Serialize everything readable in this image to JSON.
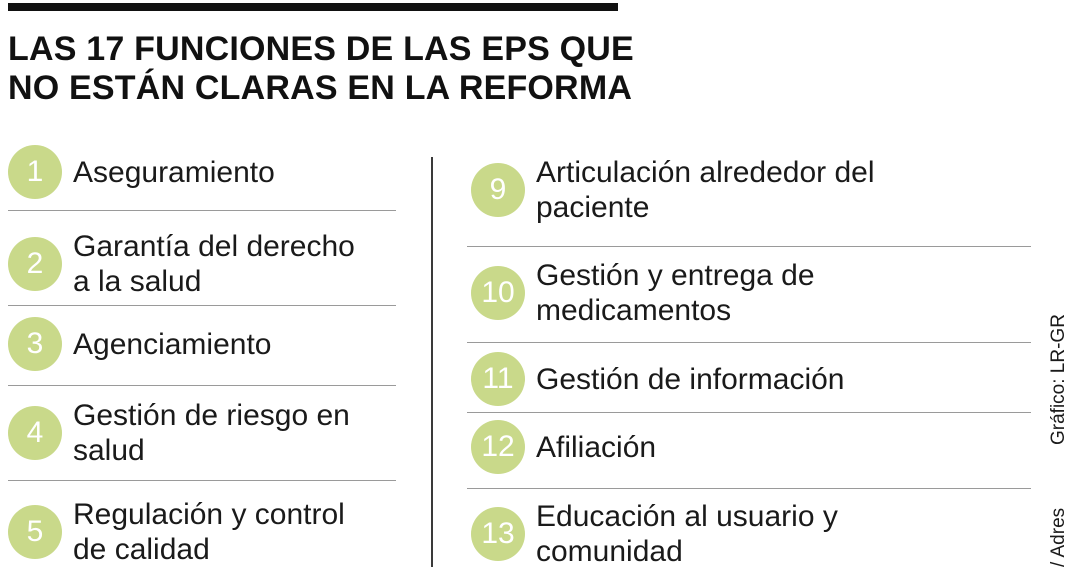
{
  "title": {
    "line1": "LAS 17 FUNCIONES DE LAS EPS QUE",
    "line2": "NO ESTÁN CLARAS EN LA REFORMA"
  },
  "left_items": [
    {
      "number": "1",
      "label": "Aseguramiento"
    },
    {
      "number": "2",
      "label": "Garantía del derecho\na la salud"
    },
    {
      "number": "3",
      "label": "Agenciamiento"
    },
    {
      "number": "4",
      "label": "Gestión de riesgo en\nsalud"
    },
    {
      "number": "5",
      "label": "Regulación y control\nde calidad"
    }
  ],
  "right_items": [
    {
      "number": "9",
      "label": "Articulación alrededor del\npaciente"
    },
    {
      "number": "10",
      "label": "Gestión y entrega de\nmedicamentos"
    },
    {
      "number": "11",
      "label": "Gestión de información"
    },
    {
      "number": "12",
      "label": "Afiliación"
    },
    {
      "number": "13",
      "label": "Educación al usuario y\ncomunidad"
    }
  ],
  "credits": {
    "graphic": "Gráfico: LR-GR",
    "source": "/ Adres"
  },
  "colors": {
    "badge": "#c9d98a",
    "badge_text": "#ffffff",
    "rule": "#9a9a9a",
    "divider": "#3a3a3a"
  }
}
